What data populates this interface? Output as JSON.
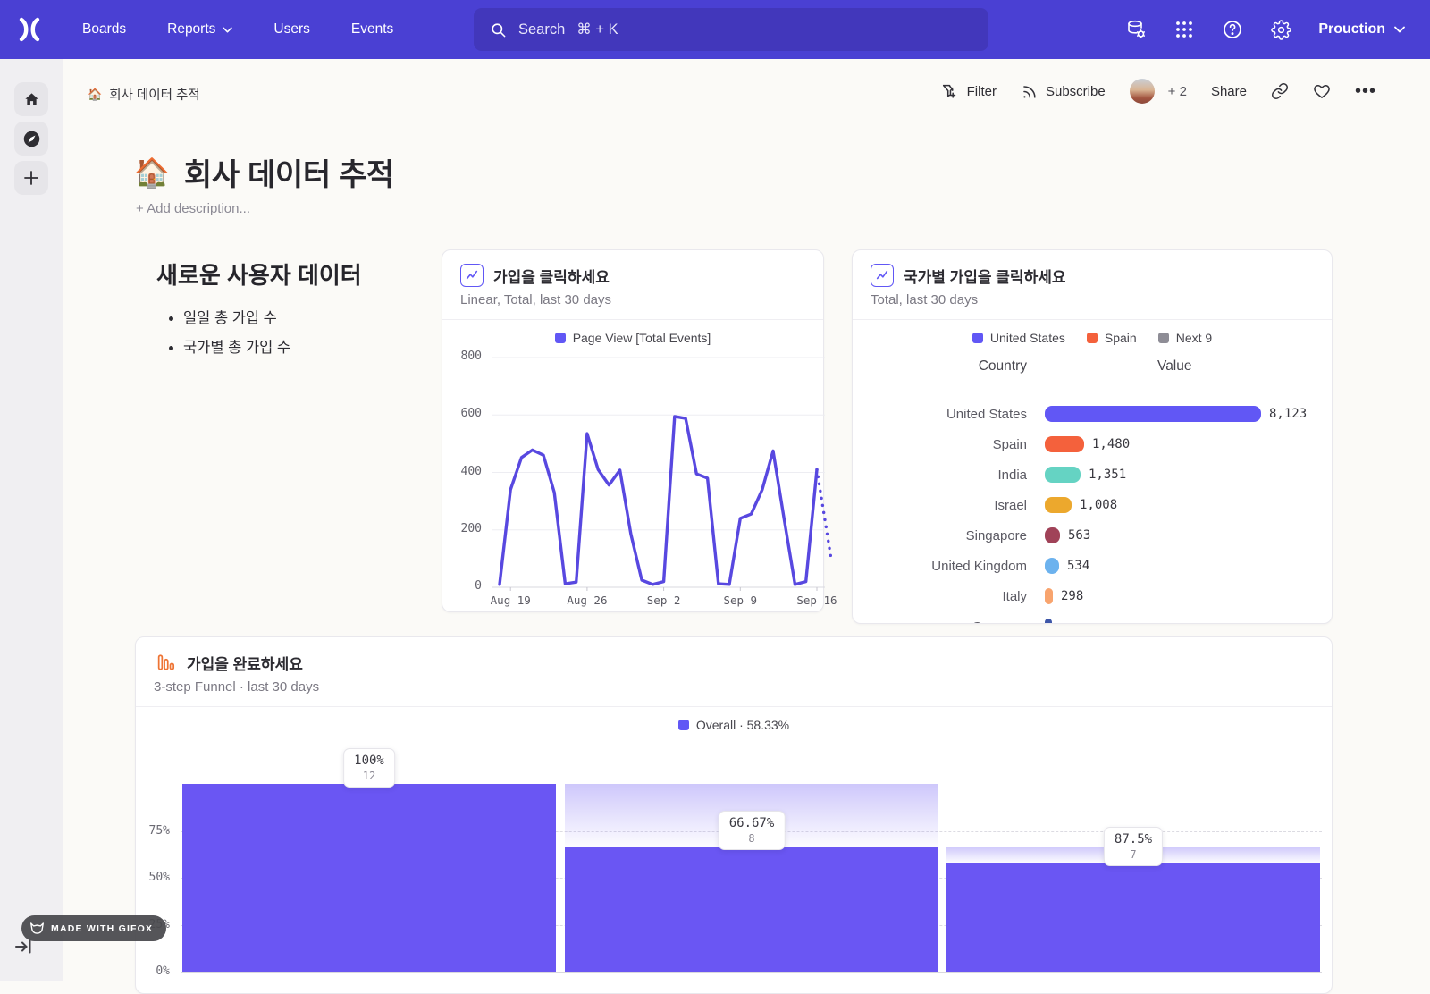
{
  "topnav": {
    "items": [
      {
        "id": "boards",
        "label": "Boards",
        "chevron": false
      },
      {
        "id": "reports",
        "label": "Reports",
        "chevron": true
      },
      {
        "id": "users",
        "label": "Users",
        "chevron": false
      },
      {
        "id": "events",
        "label": "Events",
        "chevron": false
      }
    ],
    "search": {
      "label": "Search",
      "shortcut": "⌘ + K"
    },
    "env": "Prouction"
  },
  "breadcrumb": {
    "icon": "🏠",
    "label": "회사 데이터 추적"
  },
  "toolbar": {
    "filter": "Filter",
    "subscribe": "Subscribe",
    "extra_users": "+ 2",
    "share": "Share",
    "more": "•••"
  },
  "board": {
    "emoji": "🏠",
    "title": "회사 데이터 추적",
    "add_description": "+ Add description..."
  },
  "text_tile": {
    "heading": "새로운 사용자 데이터",
    "bullets": [
      "일일 총 가입 수",
      "국가별 총 가입 수"
    ]
  },
  "line_card": {
    "title": "가입을 클릭하세요",
    "subtitle": "Linear, Total, last 30 days",
    "legend": "Page View [Total Events]",
    "legend_color": "#6157f5"
  },
  "country_card": {
    "title": "국가별 가입을 클릭하세요",
    "subtitle": "Total, last 30 days",
    "legend": [
      {
        "label": "United States",
        "color": "#6157f5"
      },
      {
        "label": "Spain",
        "color": "#f4613c"
      },
      {
        "label": "Next 9",
        "color": "#8e8d96"
      }
    ],
    "col_country": "Country",
    "col_value": "Value"
  },
  "funnel_card": {
    "title": "가입을 완료하세요",
    "subtitle": "3-step Funnel · last 30 days",
    "legend": "Overall · 58.33%",
    "legend_color": "#6157f5"
  },
  "gifox": {
    "label": "MADE WITH GIFOX"
  },
  "chart_data": [
    {
      "type": "line",
      "title": "가입을 클릭하세요",
      "series_name": "Page View [Total Events]",
      "color": "#5848e0",
      "x": [
        "Aug 18",
        "Aug 19",
        "Aug 20",
        "Aug 21",
        "Aug 22",
        "Aug 23",
        "Aug 24",
        "Aug 25",
        "Aug 26",
        "Aug 27",
        "Aug 28",
        "Aug 29",
        "Aug 30",
        "Aug 31",
        "Sep 1",
        "Sep 2",
        "Sep 3",
        "Sep 4",
        "Sep 5",
        "Sep 6",
        "Sep 7",
        "Sep 8",
        "Sep 9",
        "Sep 10",
        "Sep 11",
        "Sep 12",
        "Sep 13",
        "Sep 14",
        "Sep 15",
        "Sep 16"
      ],
      "values": [
        10,
        340,
        452,
        478,
        460,
        330,
        12,
        18,
        535,
        410,
        356,
        408,
        185,
        25,
        10,
        20,
        595,
        588,
        395,
        380,
        12,
        10,
        240,
        255,
        340,
        475,
        240,
        10,
        20,
        410
      ],
      "dotted_tail": [
        410,
        100
      ],
      "ylim": [
        0,
        800
      ],
      "yticks": [
        0,
        200,
        400,
        600,
        800
      ],
      "xticks": [
        {
          "i": 1,
          "label": "Aug 19"
        },
        {
          "i": 8,
          "label": "Aug 26"
        },
        {
          "i": 15,
          "label": "Sep 2"
        },
        {
          "i": 22,
          "label": "Sep 9"
        },
        {
          "i": 29,
          "label": "Sep 16"
        }
      ]
    },
    {
      "type": "bar",
      "orientation": "horizontal",
      "title": "국가별 가입을 클릭하세요",
      "max_value": 8123,
      "rows": [
        {
          "country": "United States",
          "value": 8123,
          "display": "8,123",
          "color": "#6157f5"
        },
        {
          "country": "Spain",
          "value": 1480,
          "display": "1,480",
          "color": "#f4613c"
        },
        {
          "country": "India",
          "value": 1351,
          "display": "1,351",
          "color": "#65d3c3"
        },
        {
          "country": "Israel",
          "value": 1008,
          "display": "1,008",
          "color": "#eca82d"
        },
        {
          "country": "Singapore",
          "value": 563,
          "display": "563",
          "color": "#a04258"
        },
        {
          "country": "United Kingdom",
          "value": 534,
          "display": "534",
          "color": "#6cb2ee"
        },
        {
          "country": "Italy",
          "value": 298,
          "display": "298",
          "color": "#f8a46e"
        }
      ],
      "partial_row": {
        "country": "Germany",
        "color": "#3d56a8"
      }
    },
    {
      "type": "funnel",
      "title": "가입을 완료하세요",
      "overall_conversion": "58.33%",
      "steps": [
        {
          "label": "100%",
          "count": "12",
          "overall_pct": 100,
          "prev_pct": 100
        },
        {
          "label": "66.67%",
          "count": "8",
          "overall_pct": 66.67,
          "prev_pct": 100
        },
        {
          "label": "87.5%",
          "count": "7",
          "overall_pct": 58.33,
          "prev_pct": 66.67
        }
      ],
      "gridlines": [
        25,
        50,
        75
      ],
      "yticks": [
        {
          "label": "0%",
          "pct": 0
        },
        {
          "label": "25%",
          "pct": 25
        },
        {
          "label": "50%",
          "pct": 50
        },
        {
          "label": "75%",
          "pct": 75
        }
      ],
      "bar_color": "#6a56f3"
    }
  ]
}
